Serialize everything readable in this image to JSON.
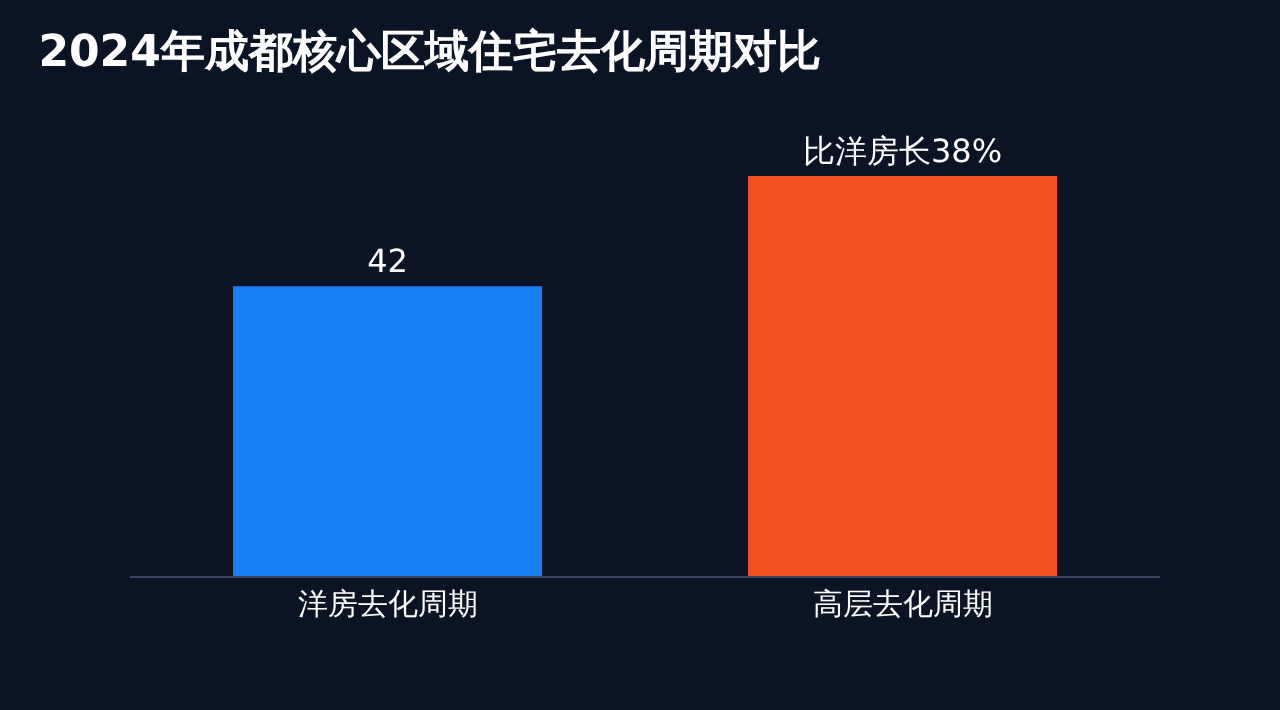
{
  "chart_data": {
    "type": "bar",
    "title": "2024年成都核心区域住宅去化周期对比",
    "categories": [
      "洋房去化周期",
      "高层去化周期"
    ],
    "values": [
      42,
      58
    ],
    "colors": [
      "#1a7ef5",
      "#f4501f"
    ],
    "value_labels": [
      "42",
      "比洋房长38%"
    ]
  }
}
